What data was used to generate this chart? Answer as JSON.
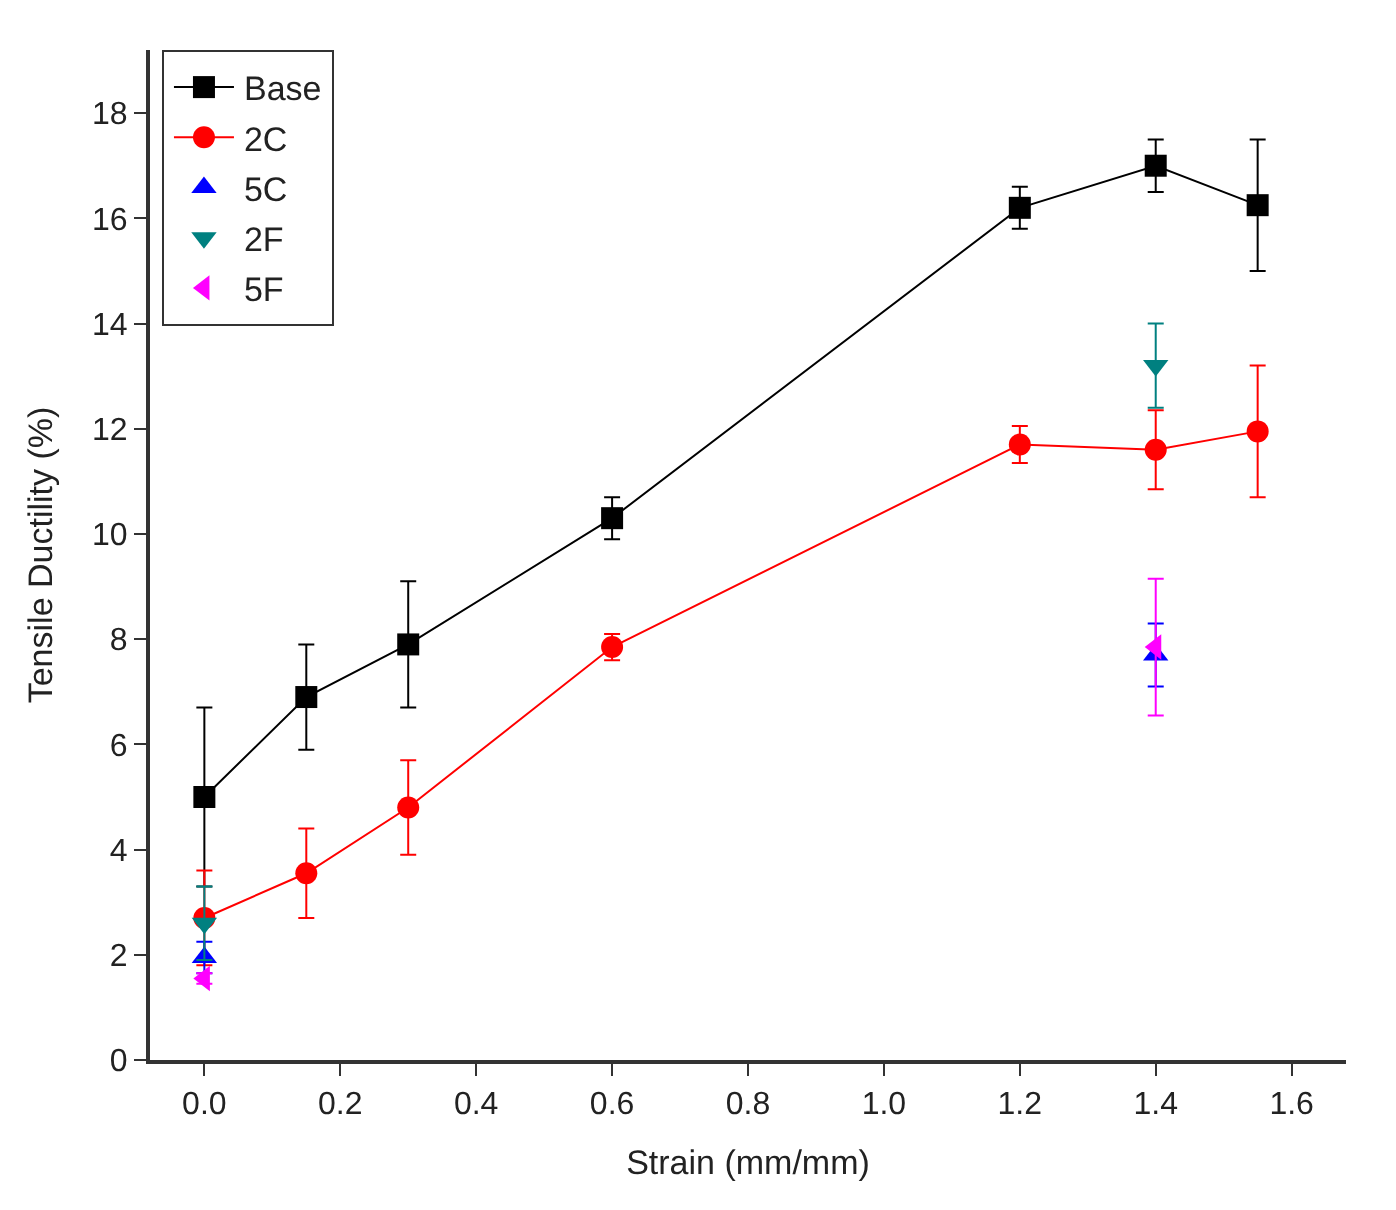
{
  "chart_data": {
    "type": "line",
    "xlabel": "Strain (mm/mm)",
    "ylabel": "Tensile Ductility (%)",
    "xlim": [
      -0.08,
      1.68
    ],
    "ylim": [
      0,
      19.2
    ],
    "xticks": [
      {
        "value": 0,
        "label": "0.0"
      },
      0.2,
      0.4,
      0.6,
      0.8,
      {
        "value": 1,
        "label": "1.0"
      },
      1.2,
      1.4,
      1.6
    ],
    "yticks": [
      0,
      2,
      4,
      6,
      8,
      10,
      12,
      14,
      16,
      18
    ],
    "legend": "top left",
    "line_style": "solid",
    "series": [
      {
        "name": "Base",
        "color": "#000000",
        "marker": "square",
        "x": [
          0,
          0.15,
          0.3,
          0.6,
          1.2,
          1.4,
          1.55
        ],
        "values": [
          5.0,
          6.9,
          7.9,
          10.3,
          16.2,
          17.0,
          16.25
        ],
        "errors": [
          1.7,
          1.0,
          1.2,
          0.4,
          0.4,
          0.5,
          1.25
        ]
      },
      {
        "name": "2C",
        "color": "#ff0000",
        "marker": "circle",
        "x": [
          0,
          0.15,
          0.3,
          0.6,
          1.2,
          1.4,
          1.55
        ],
        "values": [
          2.7,
          3.55,
          4.8,
          7.85,
          11.7,
          11.6,
          11.95
        ],
        "errors": [
          0.9,
          0.85,
          0.9,
          0.25,
          0.35,
          0.75,
          1.25
        ]
      },
      {
        "name": "5C",
        "type": "scatter",
        "color": "#0000ff",
        "marker": "triangle",
        "x": [
          0,
          1.4
        ],
        "values": [
          1.95,
          7.7
        ],
        "errors": [
          0.3,
          0.6
        ]
      },
      {
        "name": "2F",
        "type": "scatter",
        "color": "#008080",
        "marker": "triangle-down",
        "x": [
          0,
          1.4
        ],
        "values": [
          2.6,
          13.2
        ],
        "errors": [
          0.7,
          0.8
        ]
      },
      {
        "name": "5F",
        "type": "scatter",
        "color": "#ff00ff",
        "marker": "triangle-left",
        "x": [
          0,
          1.4
        ],
        "values": [
          1.55,
          7.85
        ],
        "errors": [
          0.1,
          1.3
        ]
      }
    ]
  }
}
